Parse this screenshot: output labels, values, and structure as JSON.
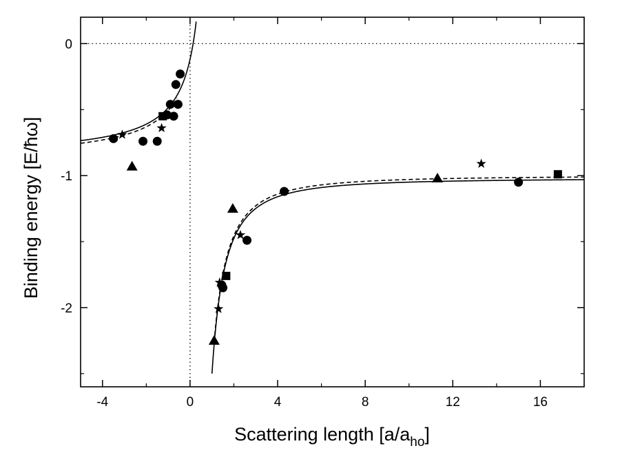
{
  "chart_data": {
    "type": "scatter",
    "xlabel": "Scattering length [a/a",
    "xlabel_sub": "ho",
    "xlabel_end": "]",
    "ylabel": "Binding energy [E/ħω]",
    "xlim": [
      -5,
      18
    ],
    "ylim": [
      -2.6,
      0.2
    ],
    "x_ticks": [
      -4,
      0,
      4,
      8,
      12,
      16
    ],
    "x_tick_labels": [
      "-4",
      "0",
      "4",
      "8",
      "12",
      "16"
    ],
    "y_ticks": [
      0,
      -1,
      -2
    ],
    "y_tick_labels": [
      "0",
      "-1",
      "-2"
    ],
    "reference_lines": {
      "x": 0,
      "y": 0,
      "style": "dotted"
    },
    "grid": false,
    "series": [
      {
        "marker": "circle",
        "points": [
          [
            -3.5,
            -0.72
          ],
          [
            -2.15,
            -0.74
          ],
          [
            -1.5,
            -0.74
          ],
          [
            -1.05,
            -0.54
          ],
          [
            -0.9,
            -0.46
          ],
          [
            -0.75,
            -0.55
          ],
          [
            -0.65,
            -0.31
          ],
          [
            -0.55,
            -0.46
          ],
          [
            -0.45,
            -0.23
          ],
          [
            1.45,
            -1.83
          ],
          [
            1.5,
            -1.85
          ],
          [
            2.6,
            -1.49
          ],
          [
            4.3,
            -1.12
          ],
          [
            15.0,
            -1.05
          ]
        ]
      },
      {
        "marker": "star",
        "points": [
          [
            -3.1,
            -0.69
          ],
          [
            -1.3,
            -0.64
          ],
          [
            1.3,
            -2.01
          ],
          [
            1.35,
            -1.81
          ],
          [
            2.3,
            -1.45
          ],
          [
            13.3,
            -0.91
          ]
        ]
      },
      {
        "marker": "square",
        "points": [
          [
            -1.25,
            -0.55
          ],
          [
            1.65,
            -1.76
          ],
          [
            16.8,
            -0.99
          ]
        ]
      },
      {
        "marker": "triangle",
        "points": [
          [
            -2.65,
            -0.93
          ],
          [
            1.1,
            -2.25
          ],
          [
            1.95,
            -1.25
          ],
          [
            11.3,
            -1.02
          ]
        ]
      }
    ],
    "curves": [
      {
        "style": "solid",
        "branches": [
          {
            "x_min": -5,
            "x_max": 0.28,
            "func": "unitary_left",
            "offset": 0
          },
          {
            "x_min": 1.0,
            "x_max": 18,
            "func": "unitary_right",
            "offset": 0
          }
        ]
      },
      {
        "style": "dashed",
        "branches": [
          {
            "x_min": -5,
            "x_max": -0.6,
            "func": "unitary_left",
            "offset": 0.02
          },
          {
            "x_min": 1.1,
            "x_max": 18,
            "func": "unitary_right",
            "offset": 0.02
          }
        ]
      }
    ]
  }
}
